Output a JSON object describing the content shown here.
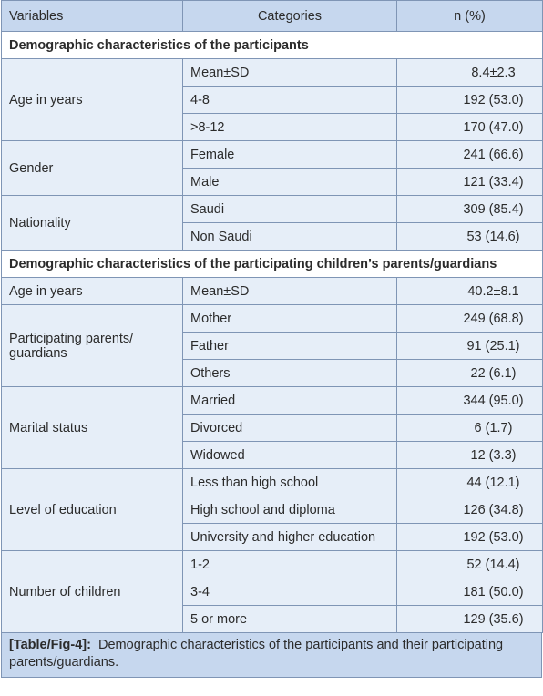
{
  "table": {
    "header": [
      "Variables",
      "Categories",
      "n (%)"
    ],
    "sections": [
      {
        "title": "Demographic characteristics of the participants",
        "groups": [
          {
            "variable": "Age in years",
            "rows": [
              [
                "Mean±SD",
                "8.4±2.3"
              ],
              [
                "4-8",
                "192 (53.0)"
              ],
              [
                ">8-12",
                "170 (47.0)"
              ]
            ]
          },
          {
            "variable": "Gender",
            "rows": [
              [
                "Female",
                "241 (66.6)"
              ],
              [
                "Male",
                "121 (33.4)"
              ]
            ]
          },
          {
            "variable": "Nationality",
            "rows": [
              [
                "Saudi",
                "309 (85.4)"
              ],
              [
                "Non Saudi",
                "53 (14.6)"
              ]
            ]
          }
        ]
      },
      {
        "title": "Demographic characteristics of the participating children’s parents/guardians",
        "groups": [
          {
            "variable": "Age in years",
            "rows": [
              [
                "Mean±SD",
                "40.2±8.1"
              ]
            ]
          },
          {
            "variable": "Participating parents/ guardians",
            "rows": [
              [
                "Mother",
                "249 (68.8)"
              ],
              [
                "Father",
                "91 (25.1)"
              ],
              [
                "Others",
                "22 (6.1)"
              ]
            ]
          },
          {
            "variable": "Marital status",
            "rows": [
              [
                "Married",
                "344 (95.0)"
              ],
              [
                "Divorced",
                "6 (1.7)"
              ],
              [
                "Widowed",
                "12 (3.3)"
              ]
            ]
          },
          {
            "variable": "Level of education",
            "rows": [
              [
                "Less than high school",
                "44 (12.1)"
              ],
              [
                "High school and diploma",
                "126 (34.8)"
              ],
              [
                "University and higher education",
                "192 (53.0)"
              ]
            ]
          },
          {
            "variable": "Number of children",
            "rows": [
              [
                "1-2",
                "52 (14.4)"
              ],
              [
                "3-4",
                "181 (50.0)"
              ],
              [
                "5 or more",
                "129 (35.6)"
              ]
            ]
          }
        ]
      }
    ],
    "caption": {
      "label": "[Table/Fig-4]:",
      "text": "Demographic characteristics of the participants and their participating parents/guardians."
    }
  }
}
